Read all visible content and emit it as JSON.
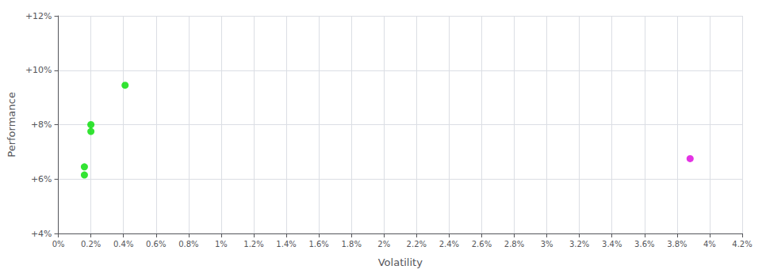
{
  "chart_data": {
    "type": "scatter",
    "xlabel": "Volatility",
    "ylabel": "Performance",
    "xlim": [
      0,
      0.042
    ],
    "ylim": [
      0.04,
      0.12
    ],
    "xticks": [
      {
        "value": 0.0,
        "label": "0%"
      },
      {
        "value": 0.002,
        "label": "0.2%"
      },
      {
        "value": 0.004,
        "label": "0.4%"
      },
      {
        "value": 0.006,
        "label": "0.6%"
      },
      {
        "value": 0.008,
        "label": "0.8%"
      },
      {
        "value": 0.01,
        "label": "1%"
      },
      {
        "value": 0.012,
        "label": "1.2%"
      },
      {
        "value": 0.014,
        "label": "1.4%"
      },
      {
        "value": 0.016,
        "label": "1.6%"
      },
      {
        "value": 0.018,
        "label": "1.8%"
      },
      {
        "value": 0.02,
        "label": "2%"
      },
      {
        "value": 0.022,
        "label": "2.2%"
      },
      {
        "value": 0.024,
        "label": "2.4%"
      },
      {
        "value": 0.026,
        "label": "2.6%"
      },
      {
        "value": 0.028,
        "label": "2.8%"
      },
      {
        "value": 0.03,
        "label": "3%"
      },
      {
        "value": 0.032,
        "label": "3.2%"
      },
      {
        "value": 0.034,
        "label": "3.4%"
      },
      {
        "value": 0.036,
        "label": "3.6%"
      },
      {
        "value": 0.038,
        "label": "3.8%"
      },
      {
        "value": 0.04,
        "label": "4%"
      },
      {
        "value": 0.042,
        "label": "4.2%"
      }
    ],
    "yticks": [
      {
        "value": 0.04,
        "label": "+4%"
      },
      {
        "value": 0.06,
        "label": "+6%"
      },
      {
        "value": 0.08,
        "label": "+8%"
      },
      {
        "value": 0.1,
        "label": "+10%"
      },
      {
        "value": 0.12,
        "label": "+12%"
      }
    ],
    "grid": true,
    "series": [
      {
        "color": "#00dd00",
        "x": [
          0.0041,
          0.002,
          0.002,
          0.0016,
          0.0016
        ],
        "values": [
          0.0945,
          0.08,
          0.0775,
          0.0645,
          0.0615
        ]
      },
      {
        "color": "#dd00dd",
        "x": [
          0.0388
        ],
        "values": [
          0.0675
        ]
      }
    ]
  }
}
